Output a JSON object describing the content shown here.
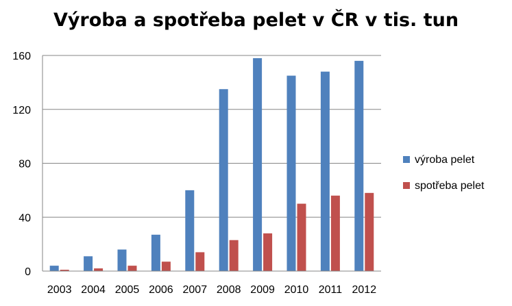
{
  "chart_data": {
    "type": "bar",
    "title": "Výroba a spotřeba pelet v ČR v tis. tun",
    "xlabel": "",
    "ylabel": "",
    "categories": [
      "2003",
      "2004",
      "2005",
      "2006",
      "2007",
      "2008",
      "2009",
      "2010",
      "2011",
      "2012"
    ],
    "series": [
      {
        "name": "výroba pelet",
        "color": "#4f81bd",
        "values": [
          4,
          11,
          16,
          27,
          60,
          135,
          158,
          145,
          148,
          156
        ]
      },
      {
        "name": "spotřeba pelet",
        "color": "#c0504d",
        "values": [
          1,
          2,
          4,
          7,
          14,
          23,
          28,
          50,
          56,
          58
        ]
      }
    ],
    "ylim": [
      0,
      160
    ],
    "yticks": [
      0,
      40,
      80,
      120,
      160
    ],
    "grid": true,
    "legend_position": "right"
  }
}
